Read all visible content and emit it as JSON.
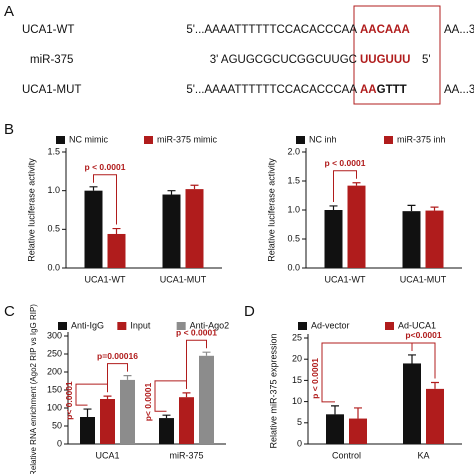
{
  "panel_labels": [
    "A",
    "B",
    "C",
    "D"
  ],
  "sequences": {
    "rows": [
      {
        "name": "UCA1-WT",
        "left": "5'...AAAATTTTTTCCACACCCAA",
        "site_red": "AACAAA",
        "site_black": "",
        "right": "AA...3'"
      },
      {
        "name": "miR-375",
        "left": "3' AGUGCGCUCGGCUUGC",
        "site_red": "UUGUUU",
        "site_black": "",
        "right": "5'"
      },
      {
        "name": "UCA1-MUT",
        "left": "5'...AAAATTTTTTCCACACCCAA",
        "site_red": "AA",
        "site_black": "GTTT",
        "right": "AA...3'"
      }
    ]
  },
  "chart_data": [
    {
      "type": "bar",
      "ylabel": "Relative luciferase activity",
      "categories": [
        "UCA1-WT",
        "UCA1-MUT"
      ],
      "series": [
        {
          "name": "NC mimic",
          "color": "#111111",
          "values": [
            1.0,
            0.95
          ],
          "errors": [
            0.05,
            0.05
          ]
        },
        {
          "name": "miR-375 mimic",
          "color": "#b01c1c",
          "values": [
            0.44,
            1.02
          ],
          "errors": [
            0.07,
            0.05
          ]
        }
      ],
      "ylim": [
        0,
        1.5
      ],
      "yticks": [
        {
          "value": 0,
          "label": "0.0"
        },
        0.5,
        {
          "value": 1,
          "label": "1.0"
        },
        1.5
      ],
      "annotations": [
        "p < 0.0001"
      ]
    },
    {
      "type": "bar",
      "ylabel": "Relative luciferase activity",
      "categories": [
        "UCA1-WT",
        "UCA1-MUT"
      ],
      "series": [
        {
          "name": "NC inh",
          "color": "#111111",
          "values": [
            1.0,
            0.98
          ],
          "errors": [
            0.07,
            0.1
          ]
        },
        {
          "name": "miR-375 inh",
          "color": "#b01c1c",
          "values": [
            1.42,
            0.99
          ],
          "errors": [
            0.05,
            0.06
          ]
        }
      ],
      "ylim": [
        0,
        2
      ],
      "yticks": [
        {
          "value": 0,
          "label": "0.0"
        },
        0.5,
        {
          "value": 1,
          "label": "1.0"
        },
        1.5,
        {
          "value": 2,
          "label": "2.0"
        }
      ],
      "annotations": [
        "p < 0.0001"
      ]
    },
    {
      "type": "bar",
      "ylabel": "Relative RNA enrichment (Ago2 RIP vs IgG RIP)",
      "categories": [
        "UCA1",
        "miR-375"
      ],
      "series": [
        {
          "name": "Anti-IgG",
          "color": "#111111",
          "values": [
            75,
            72
          ],
          "errors": [
            22,
            8
          ]
        },
        {
          "name": "Input",
          "color": "#b01c1c",
          "values": [
            125,
            130
          ],
          "errors": [
            8,
            12
          ]
        },
        {
          "name": "Anti-Ago2",
          "color": "#8c8c8c",
          "values": [
            178,
            245
          ],
          "errors": [
            12,
            10
          ]
        }
      ],
      "ylim": [
        0,
        300
      ],
      "yticks": [
        0,
        50,
        100,
        150,
        200,
        250,
        300
      ],
      "annotations": [
        "p< 0.0001",
        "p=0.00016",
        "p< 0.0001",
        "p < 0.0001"
      ]
    },
    {
      "type": "bar",
      "ylabel": "Relative miR-375 expression",
      "categories": [
        "Control",
        "KA"
      ],
      "series": [
        {
          "name": "Ad-vector",
          "color": "#111111",
          "values": [
            7,
            19
          ],
          "errors": [
            2,
            2
          ]
        },
        {
          "name": "Ad-UCA1",
          "color": "#b01c1c",
          "values": [
            6,
            13
          ],
          "errors": [
            2.5,
            1.5
          ]
        }
      ],
      "ylim": [
        0,
        25
      ],
      "yticks": [
        0,
        5,
        10,
        15,
        20,
        25
      ],
      "annotations": [
        "p < 0.0001",
        "p<0.0001"
      ]
    }
  ]
}
